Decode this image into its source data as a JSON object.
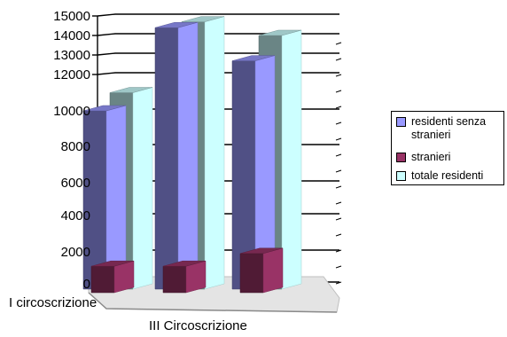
{
  "chart_data": {
    "type": "bar",
    "categories": [
      "I circoscrizione",
      "",
      "III Circoscrizione"
    ],
    "series": [
      {
        "name": "residenti senza stranieri",
        "color": "#9999ff",
        "values": [
          10000,
          14400,
          12700
        ]
      },
      {
        "name": "stranieri",
        "color": "#993366",
        "values": [
          1100,
          1100,
          1900
        ]
      },
      {
        "name": "totale residenti",
        "color": "#ccffff",
        "values": [
          11000,
          14700,
          14000
        ]
      }
    ],
    "yticks": [
      0,
      2000,
      4000,
      6000,
      8000,
      10000,
      12000,
      13000,
      14000,
      15000
    ],
    "ylim": [
      0,
      15000
    ],
    "legend_position": "right",
    "grid": "horizontal-major"
  }
}
